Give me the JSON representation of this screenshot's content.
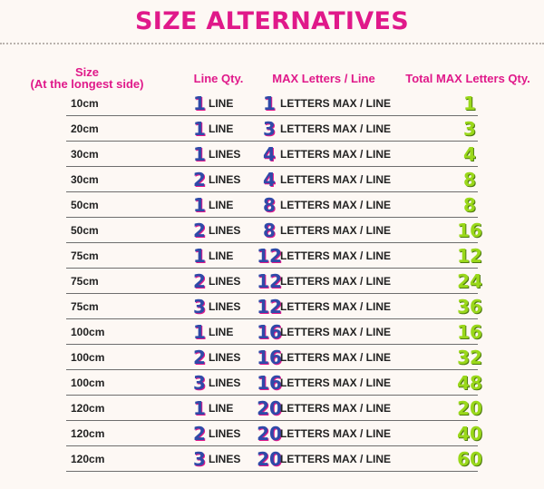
{
  "title": "SIZE ALTERNATIVES",
  "headers": {
    "size": "Size",
    "size_sub": "(At the longest side)",
    "line_qty": "Line Qty.",
    "max_letters_line": "MAX Letters / Line",
    "total_max": "Total MAX Letters Qty."
  },
  "letters_suffix": "LETTERS MAX / LINE",
  "rows": [
    {
      "size": "10cm",
      "lines": "1",
      "line_word": "LINE",
      "max": "1",
      "total": "1"
    },
    {
      "size": "20cm",
      "lines": "1",
      "line_word": "LINE",
      "max": "3",
      "total": "3"
    },
    {
      "size": "30cm",
      "lines": "1",
      "line_word": "LINES",
      "max": "4",
      "total": "4"
    },
    {
      "size": "30cm",
      "lines": "2",
      "line_word": "LINES",
      "max": "4",
      "total": "8"
    },
    {
      "size": "50cm",
      "lines": "1",
      "line_word": "LINE",
      "max": "8",
      "total": "8"
    },
    {
      "size": "50cm",
      "lines": "2",
      "line_word": "LINES",
      "max": "8",
      "total": "16"
    },
    {
      "size": "75cm",
      "lines": "1",
      "line_word": "LINE",
      "max": "12",
      "total": "12"
    },
    {
      "size": "75cm",
      "lines": "2",
      "line_word": "LINES",
      "max": "12",
      "total": "24"
    },
    {
      "size": "75cm",
      "lines": "3",
      "line_word": "LINES",
      "max": "12",
      "total": "36"
    },
    {
      "size": "100cm",
      "lines": "1",
      "line_word": "LINE",
      "max": "16",
      "total": "16"
    },
    {
      "size": "100cm",
      "lines": "2",
      "line_word": "LINES",
      "max": "16",
      "total": "32"
    },
    {
      "size": "100cm",
      "lines": "3",
      "line_word": "LINES",
      "max": "16",
      "total": "48"
    },
    {
      "size": "120cm",
      "lines": "1",
      "line_word": "LINE",
      "max": "20",
      "total": "20"
    },
    {
      "size": "120cm",
      "lines": "2",
      "line_word": "LINES",
      "max": "20",
      "total": "40"
    },
    {
      "size": "120cm",
      "lines": "3",
      "line_word": "LINES",
      "max": "20",
      "total": "60"
    }
  ],
  "colors": {
    "title": "#e0198a",
    "number_blue": "#2f4aa8",
    "total_green": "#9ad81a",
    "background": "#fdf8f4"
  }
}
